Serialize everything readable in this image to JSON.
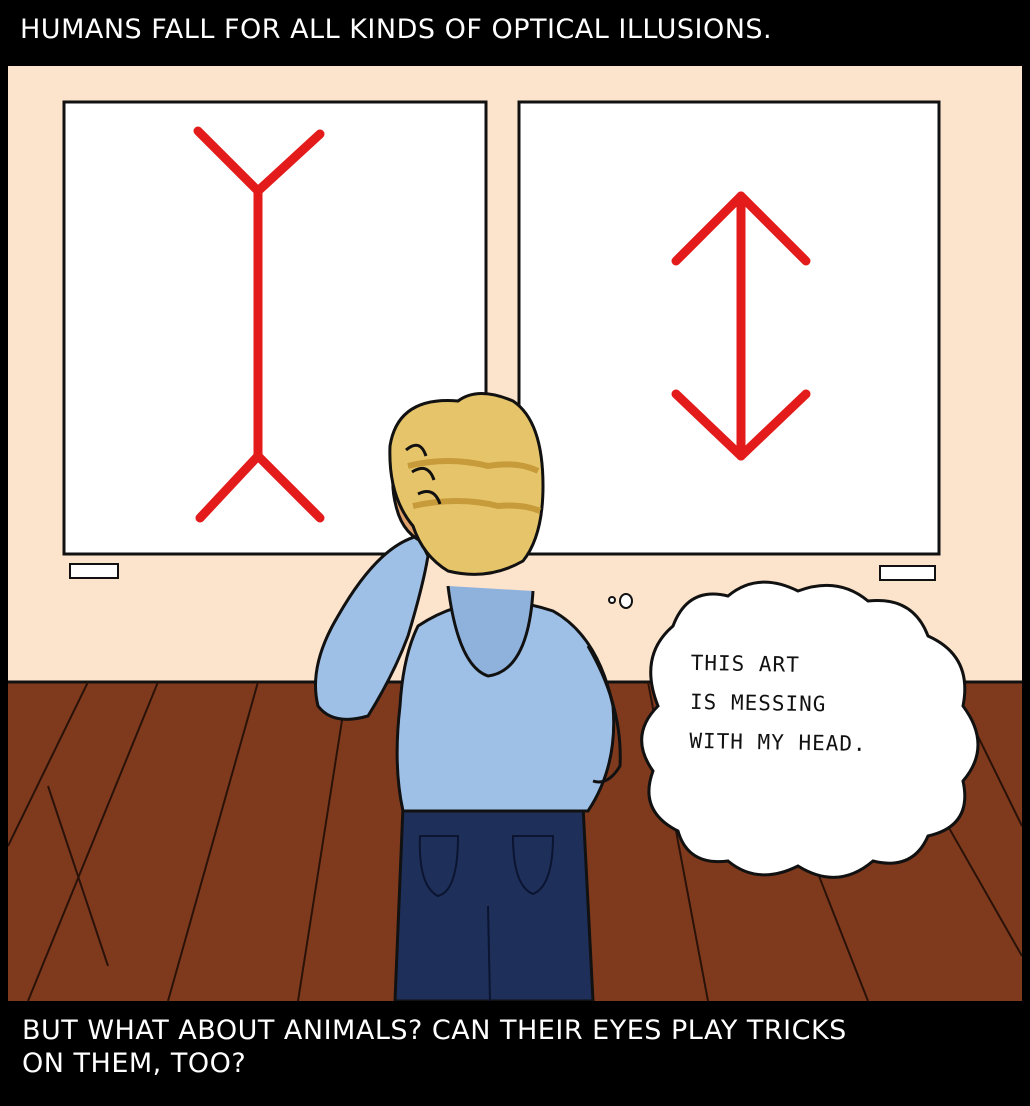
{
  "caption_top": "HUMANS FALL FOR ALL KINDS OF OPTICAL ILLUSIONS.",
  "caption_bottom": "BUT WHAT ABOUT ANIMALS? CAN THEIR EYES PLAY TRICKS\nON THEM, TOO?",
  "thought_bubble": "THIS ART\nIS MESSING\nWITH MY HEAD.",
  "colors": {
    "wall": "#fce3cb",
    "floor": "#7f3a1e",
    "arrow": "#e31b1b",
    "hoodie": "#9fc0e6",
    "jeans": "#1e2f5a",
    "hair": "#e6c46a",
    "skin": "#e0a06a"
  }
}
